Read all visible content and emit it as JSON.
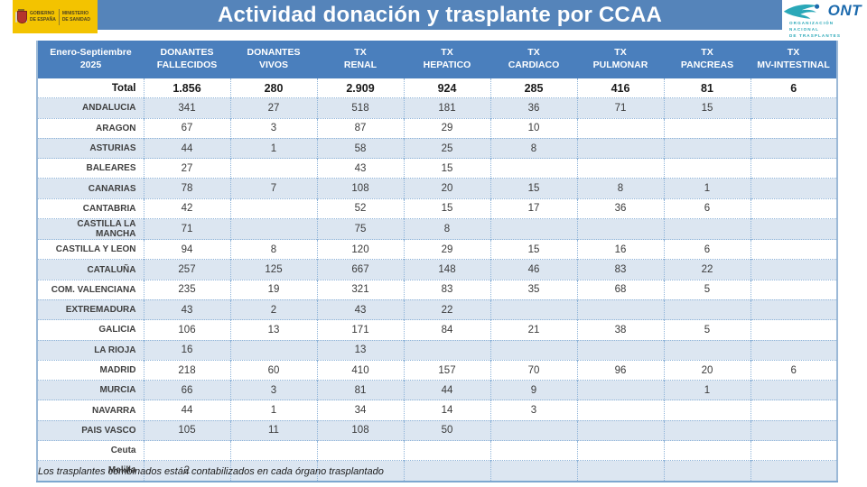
{
  "header": {
    "gov_logo": {
      "government": "GOBIERNO\nDE ESPAÑA",
      "ministry": "MINISTERIO\nDE SANIDAD"
    },
    "title": "Actividad donación y trasplante por CCAA",
    "ont_logo": {
      "acronym": "ONT",
      "subtitle": "ORGANIZACIÓN NACIONAL\nDE TRASPLANTES"
    }
  },
  "table": {
    "period_header": "Enero-Septiembre\n2025",
    "columns": [
      "DONANTES\nFALLECIDOS",
      "DONANTES\nVIVOS",
      "TX\nRENAL",
      "TX\nHEPATICO",
      "TX\nCARDIACO",
      "TX\nPULMONAR",
      "TX\nPANCREAS",
      "TX\nMV-INTESTINAL"
    ],
    "total_row": {
      "label": "Total",
      "values": [
        "1.856",
        "280",
        "2.909",
        "924",
        "285",
        "416",
        "81",
        "6"
      ]
    },
    "rows": [
      {
        "region": "ANDALUCIA",
        "values": [
          "341",
          "27",
          "518",
          "181",
          "36",
          "71",
          "15",
          ""
        ]
      },
      {
        "region": "ARAGON",
        "values": [
          "67",
          "3",
          "87",
          "29",
          "10",
          "",
          "",
          ""
        ]
      },
      {
        "region": "ASTURIAS",
        "values": [
          "44",
          "1",
          "58",
          "25",
          "8",
          "",
          "",
          ""
        ]
      },
      {
        "region": "BALEARES",
        "values": [
          "27",
          "",
          "43",
          "15",
          "",
          "",
          "",
          ""
        ]
      },
      {
        "region": "CANARIAS",
        "values": [
          "78",
          "7",
          "108",
          "20",
          "15",
          "8",
          "1",
          ""
        ]
      },
      {
        "region": "CANTABRIA",
        "values": [
          "42",
          "",
          "52",
          "15",
          "17",
          "36",
          "6",
          ""
        ]
      },
      {
        "region": "CASTILLA LA MANCHA",
        "values": [
          "71",
          "",
          "75",
          "8",
          "",
          "",
          "",
          ""
        ]
      },
      {
        "region": "CASTILLA Y LEON",
        "values": [
          "94",
          "8",
          "120",
          "29",
          "15",
          "16",
          "6",
          ""
        ]
      },
      {
        "region": "CATALUÑA",
        "values": [
          "257",
          "125",
          "667",
          "148",
          "46",
          "83",
          "22",
          ""
        ]
      },
      {
        "region": "COM. VALENCIANA",
        "values": [
          "235",
          "19",
          "321",
          "83",
          "35",
          "68",
          "5",
          ""
        ]
      },
      {
        "region": "EXTREMADURA",
        "values": [
          "43",
          "2",
          "43",
          "22",
          "",
          "",
          "",
          ""
        ]
      },
      {
        "region": "GALICIA",
        "values": [
          "106",
          "13",
          "171",
          "84",
          "21",
          "38",
          "5",
          ""
        ]
      },
      {
        "region": "LA RIOJA",
        "values": [
          "16",
          "",
          "13",
          "",
          "",
          "",
          "",
          ""
        ]
      },
      {
        "region": "MADRID",
        "values": [
          "218",
          "60",
          "410",
          "157",
          "70",
          "96",
          "20",
          "6"
        ]
      },
      {
        "region": "MURCIA",
        "values": [
          "66",
          "3",
          "81",
          "44",
          "9",
          "",
          "1",
          ""
        ]
      },
      {
        "region": "NAVARRA",
        "values": [
          "44",
          "1",
          "34",
          "14",
          "3",
          "",
          "",
          ""
        ]
      },
      {
        "region": "PAIS VASCO",
        "values": [
          "105",
          "11",
          "108",
          "50",
          "",
          "",
          "",
          ""
        ]
      },
      {
        "region": "Ceuta",
        "values": [
          "",
          "",
          "",
          "",
          "",
          "",
          "",
          ""
        ]
      },
      {
        "region": "Melilla",
        "values": [
          "2",
          "",
          "",
          "",
          "",
          "",
          "",
          ""
        ]
      }
    ]
  },
  "footer_note": "Los trasplantes combinados están contabilizados en cada órgano trasplantado",
  "colors": {
    "title_bar": "#5584ba",
    "table_header": "#4a7fbd",
    "row_shaded": "#dce6f1",
    "gov_yellow": "#f3c300",
    "ont_teal": "#2aa8b8",
    "ont_blue": "#1c6aad"
  }
}
